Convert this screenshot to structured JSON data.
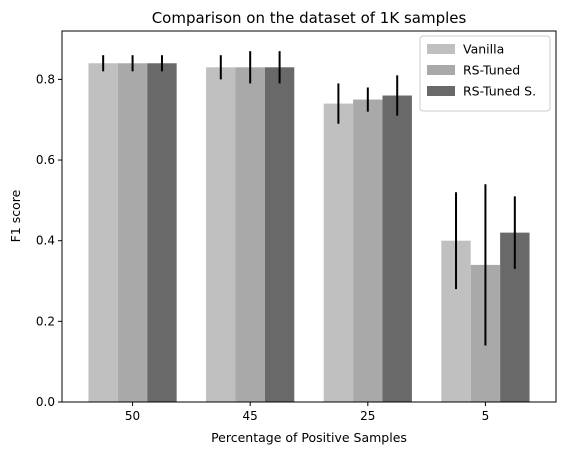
{
  "chart_data": {
    "type": "bar",
    "title": "Comparison on the dataset of 1K samples",
    "xlabel": "Percentage of Positive Samples",
    "ylabel": "F1 score",
    "categories": [
      "50",
      "45",
      "25",
      "5"
    ],
    "ylim": [
      0,
      0.92
    ],
    "yticks": [
      "0.0",
      "0.2",
      "0.4",
      "0.6",
      "0.8"
    ],
    "grid": false,
    "legend_position": "top-right",
    "series": [
      {
        "name": "Vanilla",
        "color": "#c0c0c0",
        "values": [
          0.84,
          0.83,
          0.74,
          0.4
        ],
        "errors": [
          0.02,
          0.03,
          0.05,
          0.12
        ]
      },
      {
        "name": "RS-Tuned",
        "color": "#a9a9a9",
        "values": [
          0.84,
          0.83,
          0.75,
          0.34
        ],
        "errors": [
          0.02,
          0.04,
          0.03,
          0.2
        ]
      },
      {
        "name": "RS-Tuned S.",
        "color": "#696969",
        "values": [
          0.84,
          0.83,
          0.76,
          0.42
        ],
        "errors": [
          0.02,
          0.04,
          0.05,
          0.09
        ]
      }
    ]
  }
}
